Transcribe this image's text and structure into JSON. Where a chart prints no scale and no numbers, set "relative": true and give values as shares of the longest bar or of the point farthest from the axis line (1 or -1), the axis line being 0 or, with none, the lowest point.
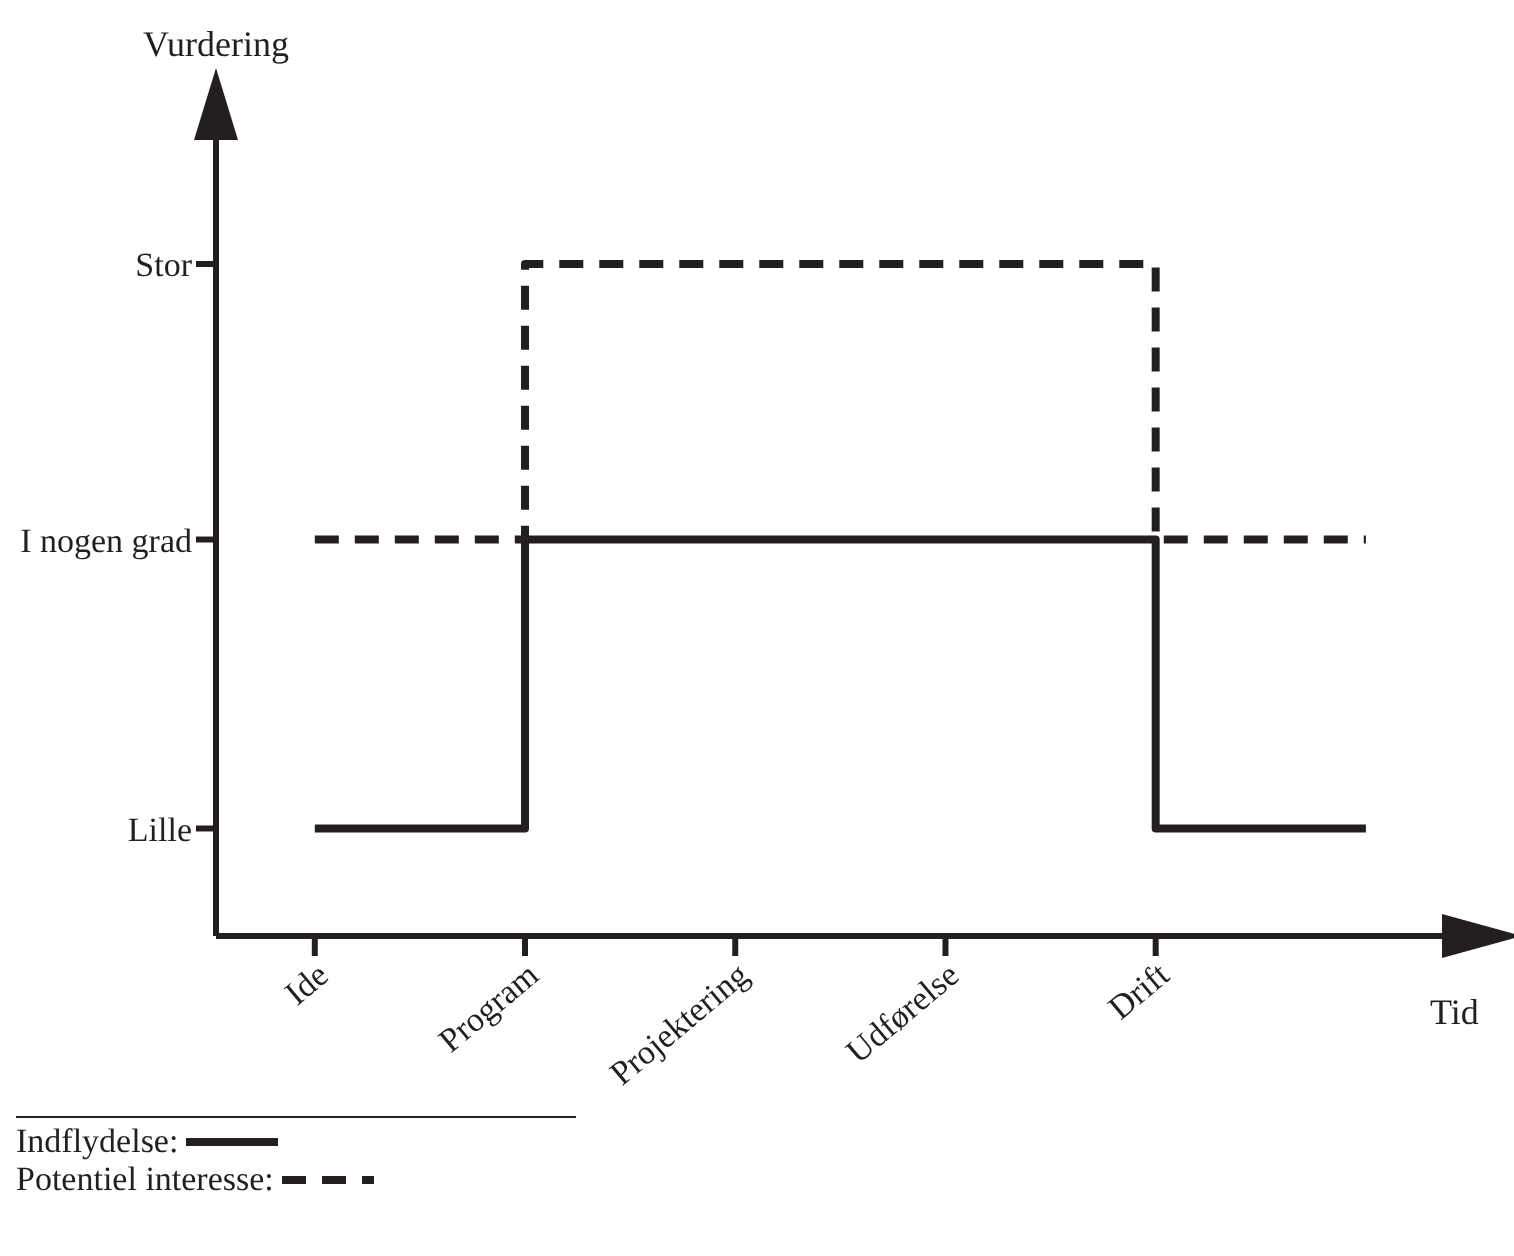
{
  "chart_data": {
    "type": "step",
    "xlabel": "Tid",
    "categories": [
      "Ide",
      "Program",
      "Projektering",
      "Udførelse",
      "Drift",
      null
    ],
    "relative": true,
    "annotations": [
      "Vurdering",
      "Lille",
      "I nogen grad",
      "Stor"
    ],
    "grid": false,
    "legend": "bottom left",
    "marker": "none",
    "series": [
      {
        "name": "Indflydelse:",
        "color": "#231f20",
        "line_style": "solid",
        "values": [
          0.16,
          0.59,
          0.59,
          0.59,
          0.16,
          0.16
        ]
      },
      {
        "name": "Potentiel interesse:",
        "color": "#231f20",
        "line_style": "dashed",
        "values": [
          0.59,
          1,
          1,
          1,
          0.59,
          0.59
        ]
      }
    ]
  }
}
